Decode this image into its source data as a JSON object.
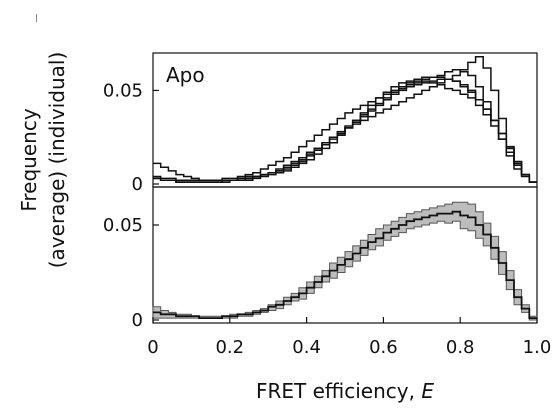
{
  "chart_data": [
    {
      "type": "line",
      "step": true,
      "panel_label": "Apo",
      "x": [
        0.0,
        0.02,
        0.04,
        0.06,
        0.08,
        0.1,
        0.12,
        0.14,
        0.16,
        0.18,
        0.2,
        0.22,
        0.24,
        0.26,
        0.28,
        0.3,
        0.32,
        0.34,
        0.36,
        0.38,
        0.4,
        0.42,
        0.44,
        0.46,
        0.48,
        0.5,
        0.52,
        0.54,
        0.56,
        0.58,
        0.6,
        0.62,
        0.64,
        0.66,
        0.68,
        0.7,
        0.72,
        0.74,
        0.76,
        0.78,
        0.8,
        0.82,
        0.84,
        0.86,
        0.88,
        0.9,
        0.92,
        0.94,
        0.96,
        0.98
      ],
      "series": [
        {
          "values": [
            0.011,
            0.009,
            0.007,
            0.005,
            0.004,
            0.003,
            0.002,
            0.002,
            0.002,
            0.002,
            0.002,
            0.003,
            0.003,
            0.004,
            0.005,
            0.006,
            0.007,
            0.008,
            0.01,
            0.012,
            0.015,
            0.018,
            0.021,
            0.024,
            0.027,
            0.03,
            0.032,
            0.034,
            0.036,
            0.038,
            0.04,
            0.042,
            0.044,
            0.046,
            0.048,
            0.05,
            0.052,
            0.054,
            0.056,
            0.058,
            0.061,
            0.065,
            0.068,
            0.062,
            0.05,
            0.035,
            0.02,
            0.012,
            0.005,
            0.001
          ]
        },
        {
          "values": [
            0.004,
            0.003,
            0.003,
            0.002,
            0.002,
            0.002,
            0.002,
            0.002,
            0.002,
            0.003,
            0.003,
            0.004,
            0.005,
            0.006,
            0.008,
            0.01,
            0.012,
            0.014,
            0.017,
            0.02,
            0.023,
            0.026,
            0.029,
            0.032,
            0.035,
            0.038,
            0.04,
            0.042,
            0.044,
            0.046,
            0.048,
            0.05,
            0.052,
            0.054,
            0.055,
            0.056,
            0.057,
            0.058,
            0.06,
            0.061,
            0.06,
            0.058,
            0.052,
            0.044,
            0.034,
            0.024,
            0.015,
            0.008,
            0.004,
            0.001
          ]
        },
        {
          "values": [
            0.003,
            0.002,
            0.002,
            0.001,
            0.001,
            0.001,
            0.001,
            0.001,
            0.001,
            0.002,
            0.002,
            0.003,
            0.004,
            0.004,
            0.005,
            0.006,
            0.008,
            0.01,
            0.012,
            0.014,
            0.017,
            0.019,
            0.022,
            0.025,
            0.027,
            0.03,
            0.033,
            0.036,
            0.039,
            0.042,
            0.045,
            0.048,
            0.05,
            0.052,
            0.053,
            0.054,
            0.055,
            0.056,
            0.056,
            0.055,
            0.053,
            0.05,
            0.045,
            0.04,
            0.034,
            0.027,
            0.019,
            0.011,
            0.005,
            0.001
          ]
        },
        {
          "values": [
            0.003,
            0.002,
            0.002,
            0.001,
            0.001,
            0.001,
            0.001,
            0.001,
            0.001,
            0.001,
            0.002,
            0.002,
            0.003,
            0.004,
            0.005,
            0.006,
            0.007,
            0.009,
            0.011,
            0.013,
            0.016,
            0.019,
            0.022,
            0.025,
            0.028,
            0.031,
            0.034,
            0.037,
            0.04,
            0.043,
            0.046,
            0.049,
            0.051,
            0.053,
            0.054,
            0.055,
            0.054,
            0.053,
            0.051,
            0.05,
            0.048,
            0.046,
            0.042,
            0.037,
            0.031,
            0.024,
            0.017,
            0.01,
            0.005,
            0.001
          ]
        },
        {
          "values": [
            0.003,
            0.002,
            0.002,
            0.001,
            0.001,
            0.001,
            0.001,
            0.001,
            0.001,
            0.001,
            0.002,
            0.002,
            0.002,
            0.003,
            0.004,
            0.005,
            0.006,
            0.007,
            0.009,
            0.011,
            0.013,
            0.016,
            0.019,
            0.022,
            0.026,
            0.03,
            0.034,
            0.038,
            0.042,
            0.046,
            0.049,
            0.052,
            0.054,
            0.055,
            0.056,
            0.057,
            0.057,
            0.057,
            0.056,
            0.055,
            0.052,
            0.049,
            0.045,
            0.04,
            0.034,
            0.027,
            0.019,
            0.011,
            0.005,
            0.001
          ]
        }
      ],
      "yticks": [
        0,
        0.05
      ],
      "ylim": [
        0,
        0.07
      ],
      "xlim": [
        0,
        1.0
      ]
    },
    {
      "type": "line",
      "step": true,
      "band": true,
      "x": [
        0.0,
        0.02,
        0.04,
        0.06,
        0.08,
        0.1,
        0.12,
        0.14,
        0.16,
        0.18,
        0.2,
        0.22,
        0.24,
        0.26,
        0.28,
        0.3,
        0.32,
        0.34,
        0.36,
        0.38,
        0.4,
        0.42,
        0.44,
        0.46,
        0.48,
        0.5,
        0.52,
        0.54,
        0.56,
        0.58,
        0.6,
        0.62,
        0.64,
        0.66,
        0.68,
        0.7,
        0.72,
        0.74,
        0.76,
        0.78,
        0.8,
        0.82,
        0.84,
        0.86,
        0.88,
        0.9,
        0.92,
        0.94,
        0.96,
        0.98
      ],
      "series": [
        {
          "values": [
            0.004,
            0.003,
            0.003,
            0.002,
            0.002,
            0.002,
            0.001,
            0.001,
            0.001,
            0.002,
            0.002,
            0.003,
            0.003,
            0.004,
            0.005,
            0.007,
            0.008,
            0.01,
            0.012,
            0.014,
            0.017,
            0.02,
            0.023,
            0.026,
            0.029,
            0.032,
            0.035,
            0.038,
            0.041,
            0.043,
            0.046,
            0.048,
            0.05,
            0.052,
            0.053,
            0.054,
            0.055,
            0.056,
            0.056,
            0.057,
            0.055,
            0.054,
            0.05,
            0.045,
            0.038,
            0.03,
            0.021,
            0.012,
            0.006,
            0.001
          ],
          "upper": [
            0.007,
            0.005,
            0.004,
            0.003,
            0.003,
            0.002,
            0.002,
            0.002,
            0.002,
            0.002,
            0.003,
            0.003,
            0.004,
            0.005,
            0.006,
            0.008,
            0.01,
            0.012,
            0.014,
            0.017,
            0.02,
            0.023,
            0.026,
            0.03,
            0.033,
            0.036,
            0.039,
            0.042,
            0.045,
            0.048,
            0.05,
            0.052,
            0.054,
            0.056,
            0.057,
            0.058,
            0.059,
            0.06,
            0.061,
            0.062,
            0.062,
            0.061,
            0.057,
            0.051,
            0.044,
            0.036,
            0.026,
            0.016,
            0.008,
            0.002
          ],
          "lower": [
            0.001,
            0.001,
            0.001,
            0.001,
            0.001,
            0.001,
            0.001,
            0.001,
            0.001,
            0.001,
            0.001,
            0.002,
            0.002,
            0.003,
            0.004,
            0.005,
            0.006,
            0.008,
            0.01,
            0.011,
            0.014,
            0.017,
            0.02,
            0.022,
            0.025,
            0.028,
            0.031,
            0.034,
            0.037,
            0.039,
            0.042,
            0.044,
            0.046,
            0.048,
            0.049,
            0.05,
            0.051,
            0.052,
            0.051,
            0.052,
            0.048,
            0.047,
            0.043,
            0.039,
            0.032,
            0.024,
            0.016,
            0.008,
            0.004,
            0.0
          ]
        }
      ],
      "yticks": [
        0,
        0.05
      ],
      "ylim": [
        0,
        0.07
      ],
      "xlim": [
        0,
        1.0
      ],
      "xticks": [
        0,
        0.2,
        0.4,
        0.6,
        0.8,
        1.0
      ],
      "xticklabels": [
        "0",
        "0.2",
        "0.4",
        "0.6",
        "0.8",
        "1.0"
      ],
      "xlabel": "FRET efficiency, ",
      "xlabel_italic": "E"
    }
  ],
  "ylabel_lines": [
    "(average) (individual)",
    "Frequency"
  ],
  "colors": {
    "line": "#111111",
    "band": "#bdbdbd",
    "band_edge": "#555555"
  }
}
